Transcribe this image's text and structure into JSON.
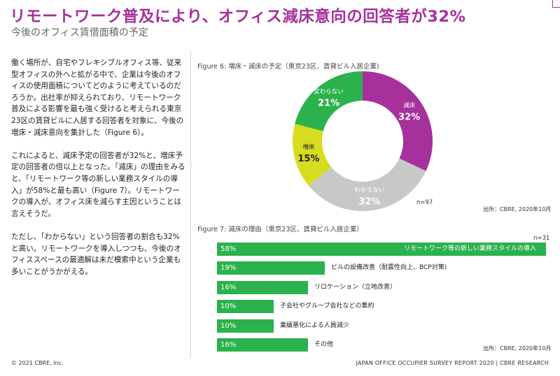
{
  "header": {
    "title": "リモートワーク普及により、オフィス減床意向の回答者が32%",
    "subtitle": "今後のオフィス賃借面積の予定"
  },
  "body": {
    "paragraphs": [
      "働く場所が、自宅やフレキシブルオフィス等、従来型オフィスの外へと拡がる中で、企業は今後のオフィスの使用面積についてどのように考えているのだろうか。出社率が抑えられており、リモートワーク普及による影響を最も強く受けると考えられる東京23区の賃貸ビルに入居する回答者を対象に、今後の増床・減床意向を集計した（Figure 6）。",
      "これによると、減床予定の回答者が32%と、増床予定の回答者の倍以上となった。「減床」の理由をみると、「リモートワーク等の新しい業務スタイルの導入」が58%と最も高い（Figure 7）。リモートワークの導入が、オフィス床を減らす主因ということは言えそうだ。",
      "ただし、「わからない」という回答者の割合も32%と高い。リモートワークを導入しつつも、今後のオフィススペースの最適解は未だ模索中という企業も多いことがうかがえる。"
    ]
  },
  "figure6": {
    "title": "Figure 6: 増床・減床の予定（東京23区、賃貸ビル入居企業)",
    "n": "n=97",
    "source": "出所：CBRE, 2020年10月"
  },
  "figure7": {
    "title": "Figure 7: 減床の理由（東京23区、賃貸ビル入居企業）",
    "n": "n=31",
    "source": "出所：CBRE, 2020年10月"
  },
  "chart_data": [
    {
      "type": "pie",
      "donut": true,
      "title": "Figure 6: 増床・減床の予定（東京23区、賃貸ビル入居企業)",
      "slices": [
        {
          "label": "減床",
          "value": 32,
          "value_label": "32%",
          "color": "#a6309c"
        },
        {
          "label": "わからない",
          "value": 32,
          "value_label": "32%",
          "color": "#c8c8c8"
        },
        {
          "label": "増床",
          "value": 15,
          "value_label": "15%",
          "color": "#d8dc1e"
        },
        {
          "label": "変わらない",
          "value": 21,
          "value_label": "21%",
          "color": "#2bb24c"
        }
      ],
      "annotation": "n=97"
    },
    {
      "type": "bar",
      "orientation": "horizontal",
      "title": "Figure 7: 減床の理由（東京23区、賃貸ビル入居企業）",
      "color": "#2bb24c",
      "xlim": [
        0,
        58
      ],
      "categories": [
        "リモートワーク等の新しい業務スタイルの導入",
        "ビルの設備改善（耐震性向上、BCP対策)",
        "リロケーション（立地改善）",
        "子会社やグループ会社などの集約",
        "業績悪化による人員減少",
        "その他"
      ],
      "values": [
        58,
        19,
        16,
        10,
        10,
        16
      ],
      "value_labels": [
        "58%",
        "19%",
        "16%",
        "10%",
        "10%",
        "16%"
      ],
      "annotation": "n=31"
    }
  ],
  "footer": {
    "copyright": "© 2021 CBRE, Inc.",
    "report": "JAPAN OFFICE OCCUPIER SURVEY REPORT 2020 | CBRE RESEARCH"
  }
}
